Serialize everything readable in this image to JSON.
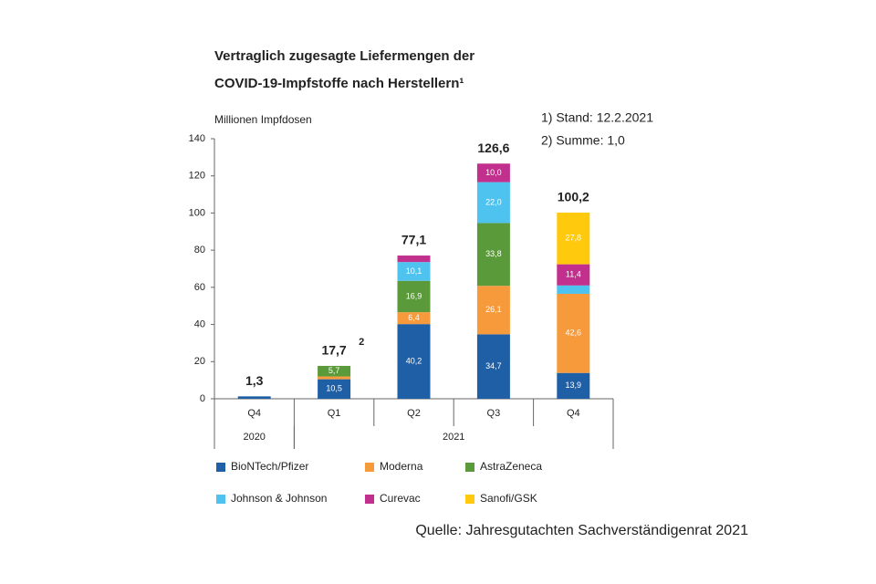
{
  "chart_data": {
    "type": "stacked_bar",
    "title": [
      "Vertraglich zugesagte Liefermengen der",
      "COVID-19-Impfstoffe nach Herstellern¹"
    ],
    "y_label": "Millionen Impfdosen",
    "notes": [
      "1) Stand: 12.2.2021",
      "2) Summe: 1,0"
    ],
    "source": "Quelle: Jahresgutachten Sachverständigenrat 2021",
    "categories": [
      "Q4",
      "Q1",
      "Q2",
      "Q3",
      "Q4"
    ],
    "year_groups": [
      {
        "label": "2020",
        "span": 1
      },
      {
        "label": "2021",
        "span": 4
      }
    ],
    "ylim": [
      0,
      140
    ],
    "yticks": [
      0,
      20,
      40,
      60,
      80,
      100,
      120,
      140
    ],
    "totals": [
      1.3,
      17.7,
      77.1,
      126.6,
      100.2
    ],
    "total_labels": [
      "1,3",
      "17,7",
      "77,1",
      "126,6",
      "100,2"
    ],
    "total_notes": [
      null,
      "2",
      null,
      null,
      null
    ],
    "series": [
      {
        "name": "BioNTech/Pfizer",
        "color": "#1f5fa6",
        "values": [
          1.3,
          10.5,
          40.2,
          34.7,
          13.9
        ],
        "value_labels": [
          null,
          "10,5",
          "40,2",
          "34,7",
          "13,9"
        ]
      },
      {
        "name": "Moderna",
        "color": "#f79a3c",
        "values": [
          null,
          1.5,
          6.4,
          26.1,
          42.6
        ],
        "value_labels": [
          null,
          null,
          "6,4",
          "26,1",
          "42,6"
        ]
      },
      {
        "name": "AstraZeneca",
        "color": "#5a9a3a",
        "values": [
          null,
          5.7,
          16.9,
          33.8,
          null
        ],
        "value_labels": [
          null,
          "5,7",
          "16,9",
          "33,8",
          null
        ]
      },
      {
        "name": "Johnson & Johnson",
        "color": "#4fc3f0",
        "values": [
          null,
          null,
          10.1,
          22.0,
          4.5
        ],
        "value_labels": [
          null,
          null,
          "10,1",
          "22,0",
          null
        ]
      },
      {
        "name": "Curevac",
        "color": "#c0308c",
        "values": [
          null,
          null,
          3.5,
          10.0,
          11.4
        ],
        "value_labels": [
          null,
          null,
          null,
          "10,0",
          "11,4"
        ]
      },
      {
        "name": "Sanofi/GSK",
        "color": "#ffc90d",
        "values": [
          null,
          null,
          null,
          null,
          27.8
        ],
        "value_labels": [
          null,
          null,
          null,
          null,
          "27,8"
        ]
      }
    ]
  }
}
